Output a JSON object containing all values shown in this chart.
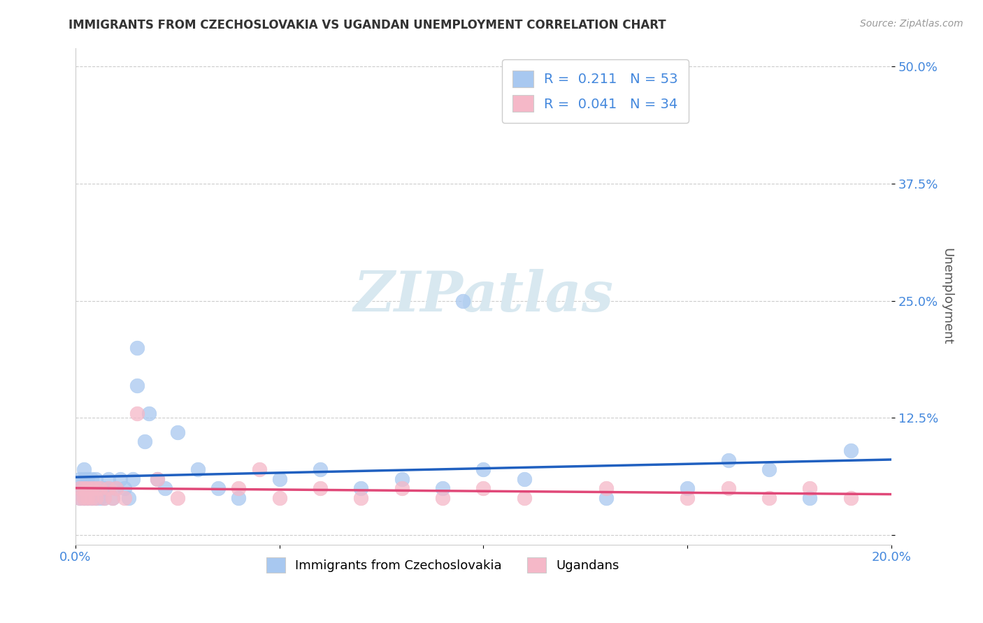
{
  "title": "IMMIGRANTS FROM CZECHOSLOVAKIA VS UGANDAN UNEMPLOYMENT CORRELATION CHART",
  "source": "Source: ZipAtlas.com",
  "ylabel": "Unemployment",
  "xlim": [
    0.0,
    0.2
  ],
  "ylim": [
    -0.01,
    0.52
  ],
  "yticks": [
    0.0,
    0.125,
    0.25,
    0.375,
    0.5
  ],
  "ytick_labels": [
    "",
    "12.5%",
    "25.0%",
    "37.5%",
    "50.0%"
  ],
  "xticks": [
    0.0,
    0.05,
    0.1,
    0.15,
    0.2
  ],
  "xtick_labels": [
    "0.0%",
    "",
    "",
    "",
    "20.0%"
  ],
  "blue_R": 0.211,
  "blue_N": 53,
  "pink_R": 0.041,
  "pink_N": 34,
  "blue_color": "#a8c8f0",
  "pink_color": "#f5b8c8",
  "blue_line_color": "#2060c0",
  "pink_line_color": "#e04878",
  "tick_color": "#4488dd",
  "watermark_color": "#d8e8f0",
  "legend_label_blue": "Immigrants from Czechoslovakia",
  "legend_label_pink": "Ugandans",
  "blue_x": [
    0.001,
    0.001,
    0.001,
    0.002,
    0.002,
    0.002,
    0.002,
    0.003,
    0.003,
    0.003,
    0.003,
    0.004,
    0.004,
    0.004,
    0.005,
    0.005,
    0.005,
    0.006,
    0.006,
    0.007,
    0.007,
    0.008,
    0.008,
    0.009,
    0.01,
    0.011,
    0.012,
    0.013,
    0.014,
    0.015,
    0.017,
    0.02,
    0.022,
    0.025,
    0.03,
    0.035,
    0.04,
    0.05,
    0.06,
    0.07,
    0.08,
    0.09,
    0.1,
    0.11,
    0.13,
    0.15,
    0.16,
    0.17,
    0.18,
    0.19,
    0.015,
    0.018,
    0.095
  ],
  "blue_y": [
    0.05,
    0.04,
    0.06,
    0.05,
    0.04,
    0.06,
    0.07,
    0.05,
    0.04,
    0.06,
    0.05,
    0.05,
    0.04,
    0.06,
    0.05,
    0.04,
    0.06,
    0.05,
    0.04,
    0.05,
    0.04,
    0.06,
    0.05,
    0.04,
    0.05,
    0.06,
    0.05,
    0.04,
    0.06,
    0.2,
    0.1,
    0.06,
    0.05,
    0.11,
    0.07,
    0.05,
    0.04,
    0.06,
    0.07,
    0.05,
    0.06,
    0.05,
    0.07,
    0.06,
    0.04,
    0.05,
    0.08,
    0.07,
    0.04,
    0.09,
    0.16,
    0.13,
    0.25
  ],
  "pink_x": [
    0.001,
    0.001,
    0.002,
    0.002,
    0.003,
    0.003,
    0.004,
    0.004,
    0.005,
    0.005,
    0.006,
    0.007,
    0.008,
    0.009,
    0.01,
    0.012,
    0.015,
    0.02,
    0.025,
    0.04,
    0.05,
    0.06,
    0.07,
    0.08,
    0.09,
    0.1,
    0.11,
    0.13,
    0.15,
    0.16,
    0.17,
    0.18,
    0.19,
    0.045
  ],
  "pink_y": [
    0.05,
    0.04,
    0.05,
    0.04,
    0.05,
    0.04,
    0.05,
    0.04,
    0.05,
    0.04,
    0.05,
    0.04,
    0.05,
    0.04,
    0.05,
    0.04,
    0.13,
    0.06,
    0.04,
    0.05,
    0.04,
    0.05,
    0.04,
    0.05,
    0.04,
    0.05,
    0.04,
    0.05,
    0.04,
    0.05,
    0.04,
    0.05,
    0.04,
    0.07
  ]
}
